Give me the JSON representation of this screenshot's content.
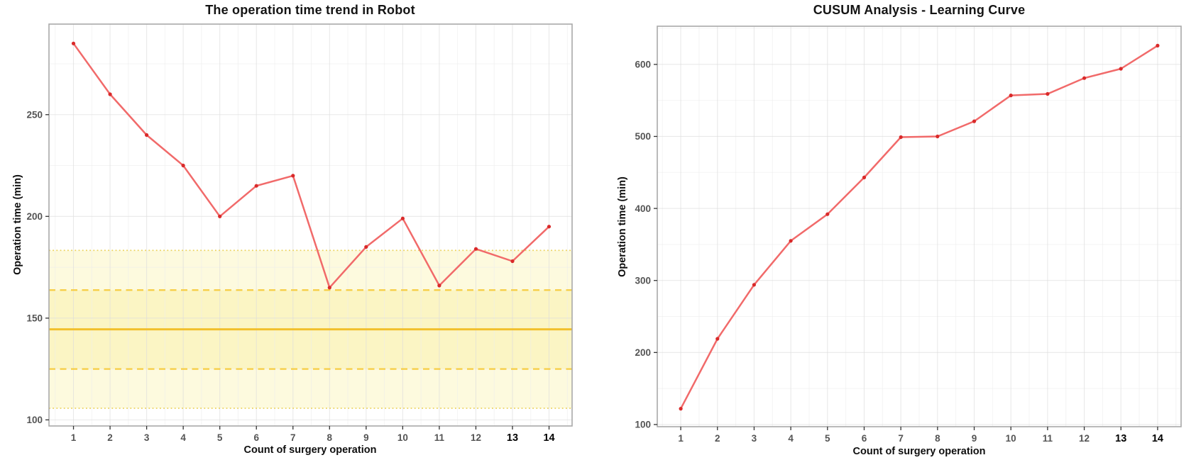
{
  "page": {
    "background": "#ffffff"
  },
  "chart_data": [
    {
      "type": "line",
      "title": "The operation time trend in Robot",
      "xlabel": "Count of surgery operation",
      "ylabel": "Operation time (min)",
      "categories": [
        1,
        2,
        3,
        4,
        5,
        6,
        7,
        8,
        9,
        10,
        11,
        12,
        13,
        14
      ],
      "values": [
        285,
        260,
        240,
        225,
        200,
        215,
        220,
        165,
        185,
        199,
        166,
        184,
        178,
        195
      ],
      "xlim": [
        0.33,
        14.63
      ],
      "ylim": [
        97,
        294.5
      ],
      "yticks": [
        100,
        150,
        200,
        250
      ],
      "yticks_minor": [
        125,
        175,
        225,
        275
      ],
      "strong_xticks": [
        13,
        14
      ],
      "grid": "on",
      "legend": "none",
      "control_limits": {
        "center": 144.5,
        "inner": [
          125,
          163.8
        ],
        "outer": [
          105.7,
          183.3
        ],
        "center_style": "solid",
        "inner_style": "dashed",
        "outer_style": "dotted"
      },
      "colors": {
        "series_line": "#f16a6a",
        "series_point": "#d92a2a",
        "center_line": "#f2c02c",
        "inner_limit_line": "#f6cd43",
        "outer_limit_line": "#ecd35f",
        "inner_band": "#fbf5c4",
        "outer_band": "#fdfade"
      }
    },
    {
      "type": "line",
      "title": "CUSUM Analysis - Learning Curve",
      "xlabel": "Count of surgery operation",
      "ylabel": "Operation time (min)",
      "categories": [
        1,
        2,
        3,
        4,
        5,
        6,
        7,
        8,
        9,
        10,
        11,
        12,
        13,
        14
      ],
      "values": [
        122,
        219,
        294,
        355,
        392,
        443,
        499,
        500,
        521,
        557,
        559,
        581,
        594,
        626
      ],
      "xlim": [
        0.36,
        14.64
      ],
      "ylim": [
        97,
        653
      ],
      "yticks": [
        100,
        200,
        300,
        400,
        500,
        600
      ],
      "yticks_minor": [
        150,
        250,
        350,
        450,
        550,
        650
      ],
      "strong_xticks": [
        13,
        14
      ],
      "grid": "on",
      "legend": "none",
      "control_limits": null,
      "colors": {
        "series_line": "#f16a6a",
        "series_point": "#d92a2a"
      }
    }
  ],
  "style_tokens": {
    "grid_major": "#dcdcdc",
    "grid_minor": "#ececec",
    "panel_border": "#a9a9a9",
    "tick_mark": "#333333",
    "tick_label": "#545454",
    "tick_label_strong": "#000000"
  }
}
